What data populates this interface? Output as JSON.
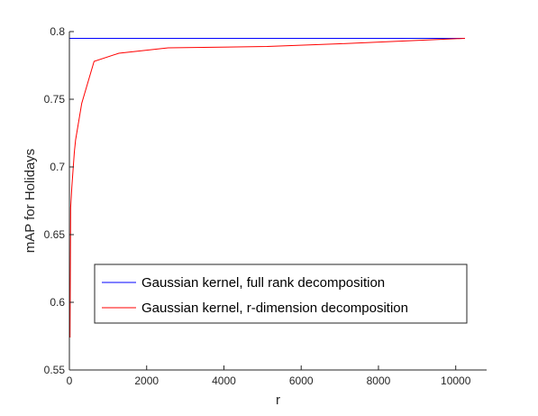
{
  "chart_data": {
    "type": "line",
    "title": "",
    "xlabel": "r",
    "ylabel": "mAP for Holidays",
    "xlim": [
      0,
      10800
    ],
    "ylim": [
      0.55,
      0.8
    ],
    "xticks": [
      0,
      2000,
      4000,
      6000,
      8000,
      10000
    ],
    "xtick_labels": [
      "0",
      "2000",
      "4000",
      "6000",
      "8000",
      "10000"
    ],
    "yticks": [
      0.55,
      0.6,
      0.65,
      0.7,
      0.75,
      0.8
    ],
    "ytick_labels": [
      "0.55",
      "0.6",
      "0.65",
      "0.7",
      "0.75",
      "0.8"
    ],
    "grid": false,
    "box": "open-top-right",
    "legend_position": "lower-right",
    "series": [
      {
        "name": "Gaussian kernel, full rank decomposition",
        "color": "#0000ff",
        "x": [
          0,
          10240
        ],
        "y": [
          0.795,
          0.795
        ]
      },
      {
        "name": "Gaussian kernel, r-dimension decomposition",
        "color": "#ff0000",
        "x": [
          16,
          32,
          64,
          128,
          160,
          320,
          640,
          1280,
          2560,
          5120,
          7000,
          10240
        ],
        "y": [
          0.574,
          0.67,
          0.685,
          0.711,
          0.72,
          0.747,
          0.778,
          0.784,
          0.788,
          0.789,
          0.791,
          0.795
        ]
      }
    ]
  }
}
